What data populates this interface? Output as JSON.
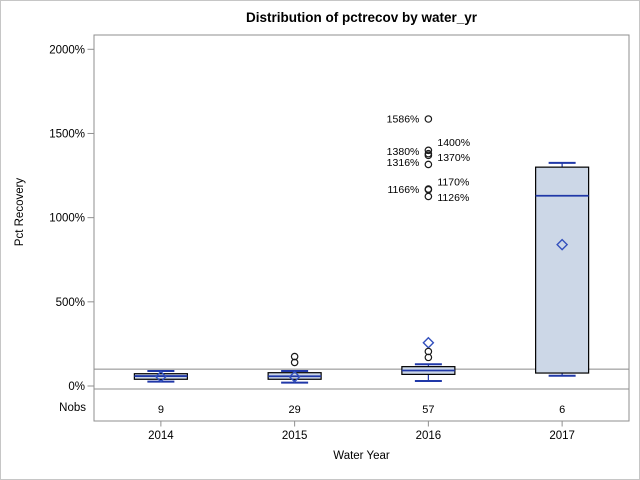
{
  "title": "Distribution of pctrecov by water_yr",
  "y_axis": {
    "label": "Pct Recovery"
  },
  "x_axis": {
    "label": "Water Year"
  },
  "nobs_row_label": "Nobs",
  "chart_data": {
    "type": "boxplot",
    "title": "Distribution of pctrecov by water_yr",
    "xlabel": "Water Year",
    "ylabel": "Pct Recovery",
    "ylim": [
      -18,
      2085
    ],
    "yticks": [
      {
        "value": 0,
        "label": "0%"
      },
      {
        "value": 500,
        "label": "500%"
      },
      {
        "value": 1000,
        "label": "1000%"
      },
      {
        "value": 1500,
        "label": "1500%"
      },
      {
        "value": 2000,
        "label": "2000%"
      }
    ],
    "reference_line": 100,
    "grid": false,
    "categories": [
      "2014",
      "2015",
      "2016",
      "2017"
    ],
    "nobs": [
      "9",
      "29",
      "57",
      "6"
    ],
    "series": [
      {
        "category": "2014",
        "n": 9,
        "whisker_low": 26,
        "q1": 40,
        "median": 59,
        "mean": 56,
        "q3": 73,
        "whisker_high": 89,
        "outliers": []
      },
      {
        "category": "2015",
        "n": 29,
        "whisker_low": 20,
        "q1": 40,
        "median": 58,
        "mean": 55,
        "q3": 79,
        "whisker_high": 89,
        "outliers": [
          {
            "value": 140
          },
          {
            "value": 175
          }
        ]
      },
      {
        "category": "2016",
        "n": 57,
        "whisker_low": 30,
        "q1": 69,
        "median": 92,
        "mean": 257,
        "q3": 115,
        "whisker_high": 129,
        "outliers": [
          {
            "value": 170
          },
          {
            "value": 205
          },
          {
            "value": 1126,
            "label": "1126%",
            "side": "right",
            "label_dy": 1
          },
          {
            "value": 1166,
            "label": "1166%",
            "side": "left",
            "label_dy": 0
          },
          {
            "value": 1170,
            "label": "1170%",
            "side": "right",
            "label_dy": -7
          },
          {
            "value": 1316,
            "label": "1316%",
            "side": "left",
            "label_dy": -2
          },
          {
            "value": 1370,
            "label": "1370%",
            "side": "right",
            "label_dy": 2
          },
          {
            "value": 1380,
            "label": "1380%",
            "side": "left",
            "label_dy": -2
          },
          {
            "value": 1400,
            "label": "1400%",
            "side": "right",
            "label_dy": -8
          },
          {
            "value": 1586,
            "label": "1586%",
            "side": "left",
            "label_dy": 0
          }
        ]
      },
      {
        "category": "2017",
        "n": 6,
        "whisker_low": 61,
        "q1": 77,
        "median": 1130,
        "mean": 840,
        "q3": 1300,
        "whisker_high": 1325,
        "outliers": []
      }
    ],
    "colors": {
      "box_fill": "#ccd7e7",
      "box_border": "#000000",
      "whisker": "#2038a8",
      "median": "#2038a8",
      "mean_marker": "#3350bd",
      "outlier_marker": "#1a1a1a",
      "reference_line": "#a9a9a9",
      "panel_border": "#8f8f8f",
      "text": "#000000"
    }
  }
}
